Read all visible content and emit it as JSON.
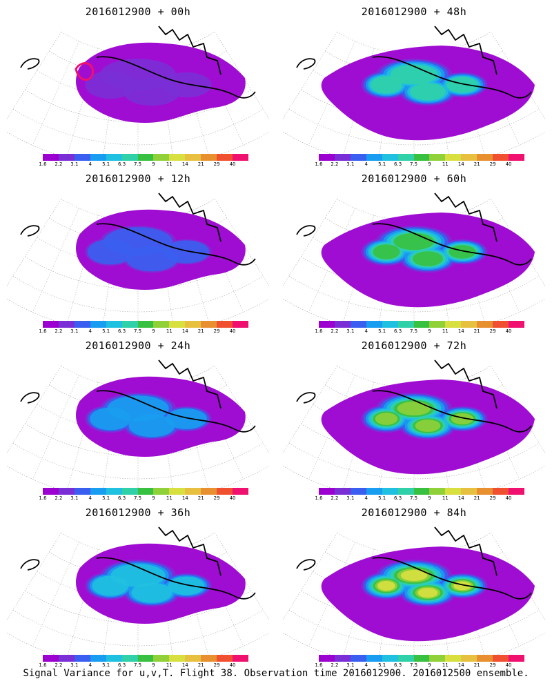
{
  "panels": [
    {
      "title": "2016012900 + 00h",
      "level": 0
    },
    {
      "title": "2016012900 + 48h",
      "level": 4
    },
    {
      "title": "2016012900 + 12h",
      "level": 1
    },
    {
      "title": "2016012900 + 60h",
      "level": 5
    },
    {
      "title": "2016012900 + 24h",
      "level": 2
    },
    {
      "title": "2016012900 + 72h",
      "level": 6
    },
    {
      "title": "2016012900 + 36h",
      "level": 3
    },
    {
      "title": "2016012900 + 84h",
      "level": 7
    }
  ],
  "colorbar": {
    "labels": [
      "1.6",
      "2.2",
      "3.1",
      "4",
      "5.1",
      "6.3",
      "7.5",
      "9",
      "11",
      "14",
      "21",
      "29",
      "40"
    ],
    "colors": [
      "#9b00d0",
      "#7a2fd6",
      "#3a5ff0",
      "#189df0",
      "#20c0e0",
      "#30d0a8",
      "#38c040",
      "#90d038",
      "#d8e040",
      "#e8c040",
      "#e89030",
      "#f05030",
      "#f01070"
    ]
  },
  "caption": "Signal Variance for u,v,T. Flight 38. Observation time 2016012900. 2016012500 ensemble."
}
